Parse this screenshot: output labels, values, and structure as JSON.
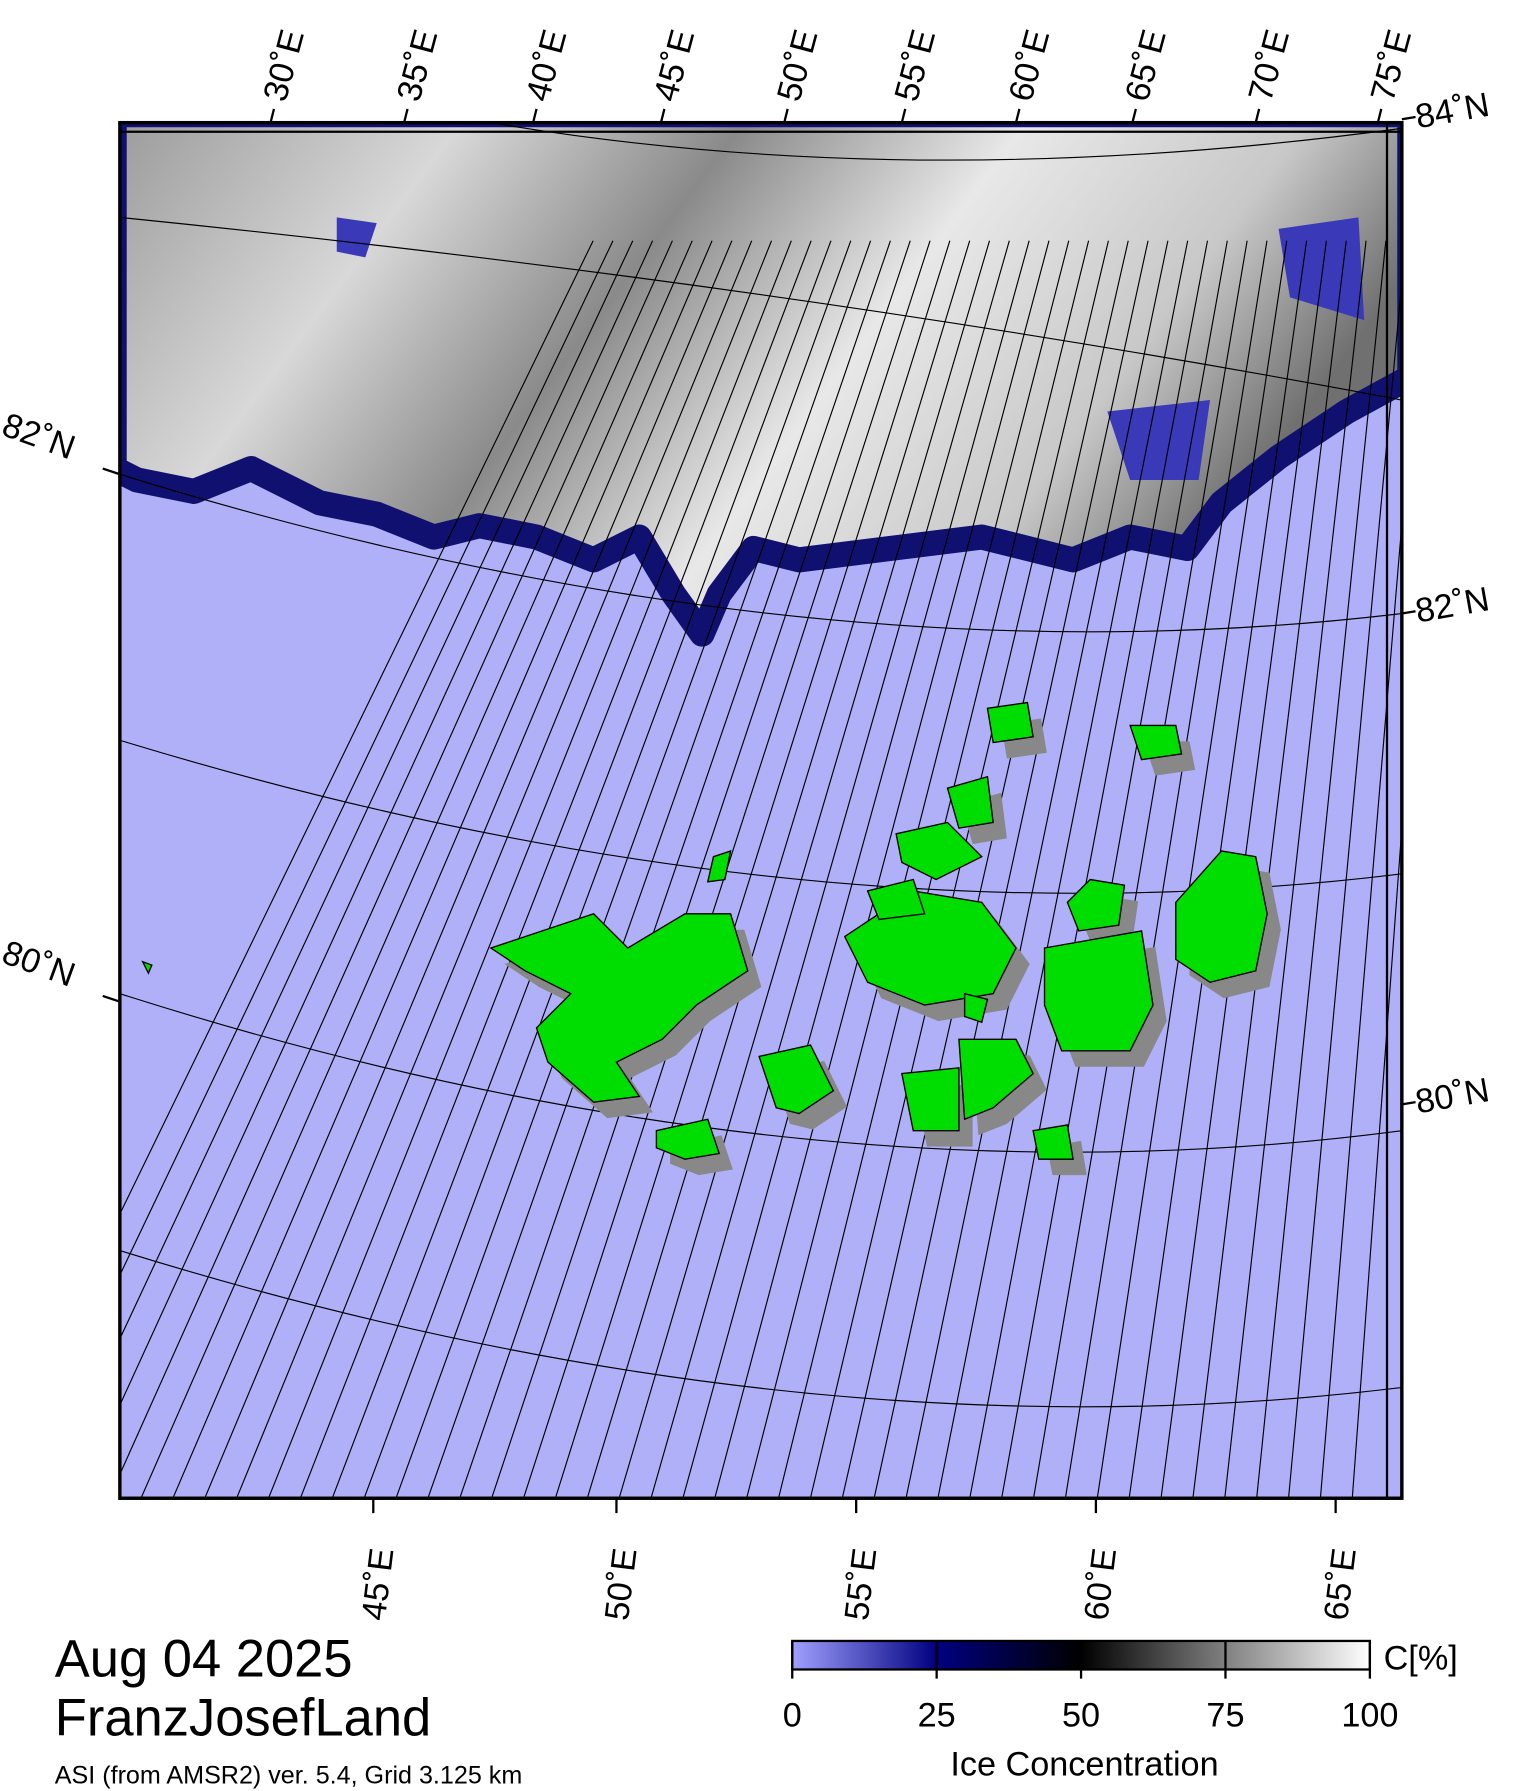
{
  "map": {
    "top_longitude_labels": [
      "30˚E",
      "35˚E",
      "40˚E",
      "45˚E",
      "50˚E",
      "55˚E",
      "60˚E",
      "65˚E",
      "70˚E",
      "75˚E"
    ],
    "bottom_longitude_labels": [
      "45˚E",
      "50˚E",
      "55˚E",
      "60˚E",
      "65˚E"
    ],
    "left_latitude_labels": [
      "82˚N",
      "80˚N"
    ],
    "right_latitude_labels": [
      "84˚N",
      "82˚N",
      "80˚N"
    ]
  },
  "date": "Aug 04 2025",
  "region": "FranzJosefLand",
  "subtitle": "ASI (from AMSR2) ver. 5.4,  Grid 3.125 km",
  "colorbar": {
    "range": [
      0,
      100
    ],
    "ticks": [
      0,
      25,
      50,
      75,
      100
    ],
    "unit": "C[%]",
    "title": "Ice Concentration",
    "colors": [
      "#a0a0ff",
      "#000080",
      "#000000",
      "#808080",
      "#ffffff"
    ]
  }
}
